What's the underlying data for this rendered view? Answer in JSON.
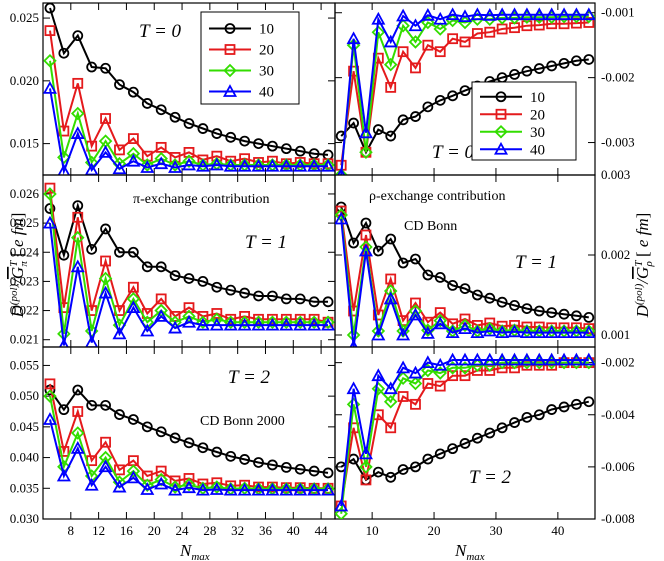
{
  "chart_data": {
    "type": "line",
    "shared": {
      "xlabel": "N_max",
      "ylabel_left": "D^{(pol)}/G̅^T_π [e fm]",
      "ylabel_right": "D^{(pol)}/G̅^T_ρ [e fm]",
      "left_x_ticks": [
        "8",
        "12",
        "16",
        "20",
        "24",
        "28",
        "32",
        "36",
        "40",
        "44"
      ],
      "right_x_ticks": [
        "10",
        "20",
        "30",
        "40"
      ],
      "series_names": [
        "10",
        "20",
        "30",
        "40"
      ],
      "colors": [
        "#000000",
        "#e41a1c",
        "#33dd00",
        "#0000ff"
      ]
    },
    "annotations": {
      "pi_exchange": "π-exchange contribution",
      "rho_exchange": "ρ-exchange contribution",
      "cd_bonn": "CD Bonn",
      "cd_bonn_2000": "CD Bonn 2000"
    },
    "panels": [
      {
        "id": "pi-T0",
        "title": "T = 0",
        "xlim": [
          4,
          46
        ],
        "ylim": [
          0.0125,
          0.0262
        ],
        "yticks": [
          "0.015",
          "0.020",
          "0.025"
        ],
        "x": [
          5,
          7,
          9,
          11,
          13,
          15,
          17,
          19,
          21,
          23,
          25,
          27,
          29,
          31,
          33,
          35,
          37,
          39,
          41,
          43,
          45
        ],
        "series": [
          {
            "name": "10",
            "values": [
              0.0258,
              0.0222,
              0.0236,
              0.0211,
              0.021,
              0.0197,
              0.0191,
              0.0182,
              0.0177,
              0.0171,
              0.0166,
              0.0162,
              0.0158,
              0.0155,
              0.0152,
              0.015,
              0.0148,
              0.0146,
              0.0144,
              0.0142,
              0.0141
            ]
          },
          {
            "name": "20",
            "values": [
              0.024,
              0.016,
              0.0198,
              0.0148,
              0.017,
              0.0145,
              0.0154,
              0.014,
              0.0147,
              0.0139,
              0.0143,
              0.0137,
              0.014,
              0.0136,
              0.0138,
              0.0135,
              0.0136,
              0.0134,
              0.0135,
              0.0134,
              0.0134
            ]
          },
          {
            "name": "30",
            "values": [
              0.0216,
              0.0139,
              0.0174,
              0.0135,
              0.0152,
              0.0134,
              0.0142,
              0.0133,
              0.0138,
              0.0133,
              0.0136,
              0.0133,
              0.0134,
              0.0133,
              0.0133,
              0.0133,
              0.0133,
              0.0133,
              0.0133,
              0.0133,
              0.0133
            ]
          },
          {
            "name": "40",
            "values": [
              0.0194,
              0.0128,
              0.0158,
              0.0129,
              0.0143,
              0.013,
              0.0136,
              0.0131,
              0.0134,
              0.0131,
              0.0133,
              0.0132,
              0.0133,
              0.0132,
              0.0132,
              0.0132,
              0.0132,
              0.0132,
              0.0132,
              0.0132,
              0.0132
            ]
          }
        ],
        "legend": "top-right"
      },
      {
        "id": "rho-T0",
        "title": "T = 0",
        "xlim": [
          4,
          46
        ],
        "ylim": [
          -0.0035,
          -0.00085
        ],
        "yticks": [
          "-0.003",
          "-0.002",
          "-0.001"
        ],
        "x": [
          5,
          7,
          9,
          11,
          13,
          15,
          17,
          19,
          21,
          23,
          25,
          27,
          29,
          31,
          33,
          35,
          37,
          39,
          41,
          43,
          45
        ],
        "series": [
          {
            "name": "10",
            "values": [
              -0.0029,
              -0.0027,
              -0.00315,
              -0.0028,
              -0.0029,
              -0.00265,
              -0.0026,
              -0.00245,
              -0.00235,
              -0.00228,
              -0.0022,
              -0.00213,
              -0.00206,
              -0.002,
              -0.00195,
              -0.0019,
              -0.00186,
              -0.00182,
              -0.00178,
              -0.00174,
              -0.00172
            ]
          },
          {
            "name": "20",
            "values": [
              -0.00335,
              -0.0019,
              -0.00315,
              -0.0017,
              -0.00215,
              -0.0016,
              -0.00185,
              -0.0015,
              -0.0016,
              -0.0014,
              -0.00145,
              -0.00132,
              -0.0013,
              -0.00125,
              -0.00123,
              -0.0012,
              -0.00119,
              -0.00117,
              -0.00117,
              -0.00116,
              -0.00115
            ]
          },
          {
            "name": "30",
            "values": [
              -0.0035,
              -0.0015,
              -0.00315,
              -0.0013,
              -0.0018,
              -0.0012,
              -0.00145,
              -0.00115,
              -0.00125,
              -0.00112,
              -0.00115,
              -0.0011,
              -0.0011,
              -0.00108,
              -0.00108,
              -0.00107,
              -0.00107,
              -0.00107,
              -0.00106,
              -0.00106,
              -0.00106
            ]
          },
          {
            "name": "40",
            "values": [
              -0.0035,
              -0.0014,
              -0.00285,
              -0.0011,
              -0.00145,
              -0.00105,
              -0.0012,
              -0.00104,
              -0.0011,
              -0.00103,
              -0.00106,
              -0.00103,
              -0.00104,
              -0.00103,
              -0.00103,
              -0.00103,
              -0.00103,
              -0.00103,
              -0.00103,
              -0.00103,
              -0.00103
            ]
          }
        ],
        "legend": "center-right"
      },
      {
        "id": "pi-T1",
        "title": "T = 1",
        "xlim": [
          4,
          46
        ],
        "ylim": [
          0.02075,
          0.02665
        ],
        "yticks": [
          "0.021",
          "0.022",
          "0.023",
          "0.024",
          "0.025",
          "0.026"
        ],
        "x": [
          5,
          7,
          9,
          11,
          13,
          15,
          17,
          19,
          21,
          23,
          25,
          27,
          29,
          31,
          33,
          35,
          37,
          39,
          41,
          43,
          45
        ],
        "series": [
          {
            "name": "10",
            "values": [
              0.0255,
              0.0239,
              0.0256,
              0.0241,
              0.0248,
              0.024,
              0.024,
              0.0235,
              0.0235,
              0.0232,
              0.0231,
              0.023,
              0.0228,
              0.0227,
              0.0226,
              0.0225,
              0.0225,
              0.0224,
              0.0224,
              0.0223,
              0.0223
            ]
          },
          {
            "name": "20",
            "values": [
              0.0262,
              0.0221,
              0.0252,
              0.022,
              0.0237,
              0.022,
              0.0228,
              0.0219,
              0.0224,
              0.0218,
              0.0221,
              0.0218,
              0.0219,
              0.0217,
              0.0218,
              0.0217,
              0.0217,
              0.0217,
              0.0217,
              0.0217,
              0.0216
            ]
          },
          {
            "name": "30",
            "values": [
              0.026,
              0.0212,
              0.0245,
              0.0213,
              0.0231,
              0.0215,
              0.0224,
              0.0216,
              0.022,
              0.0216,
              0.0218,
              0.0216,
              0.0217,
              0.0216,
              0.0216,
              0.0216,
              0.0216,
              0.0216,
              0.0216,
              0.0216,
              0.0216
            ]
          },
          {
            "name": "40",
            "values": [
              0.025,
              0.0208,
              0.0235,
              0.0209,
              0.0226,
              0.0212,
              0.0221,
              0.0213,
              0.0218,
              0.0214,
              0.0216,
              0.0215,
              0.0215,
              0.0215,
              0.0215,
              0.0215,
              0.0215,
              0.0215,
              0.0215,
              0.0215,
              0.0215
            ]
          }
        ]
      },
      {
        "id": "rho-T1",
        "title": "T = 1",
        "xlim": [
          4,
          46
        ],
        "ylim": [
          0.00085,
          0.003
        ],
        "yticks": [
          "0.001",
          "0.002",
          "0.003"
        ],
        "x": [
          5,
          7,
          9,
          11,
          13,
          15,
          17,
          19,
          21,
          23,
          25,
          27,
          29,
          31,
          33,
          35,
          37,
          39,
          41,
          43,
          45
        ],
        "series": [
          {
            "name": "10",
            "values": [
              0.0026,
              0.00215,
              0.0024,
              0.00205,
              0.0022,
              0.0019,
              0.00195,
              0.00175,
              0.00172,
              0.00162,
              0.00158,
              0.0015,
              0.00146,
              0.00141,
              0.00137,
              0.00133,
              0.0013,
              0.00128,
              0.00126,
              0.00124,
              0.00122
            ]
          },
          {
            "name": "20",
            "values": [
              0.00255,
              0.0013,
              0.00225,
              0.00125,
              0.0017,
              0.00118,
              0.0014,
              0.00116,
              0.00128,
              0.00114,
              0.0012,
              0.00112,
              0.00115,
              0.00111,
              0.00112,
              0.0011,
              0.0011,
              0.00109,
              0.00109,
              0.00109,
              0.00108
            ]
          },
          {
            "name": "30",
            "values": [
              0.0025,
              0.001,
              0.0021,
              0.00105,
              0.00155,
              0.00105,
              0.0013,
              0.00106,
              0.00118,
              0.00105,
              0.00112,
              0.00105,
              0.00108,
              0.00105,
              0.00106,
              0.00105,
              0.00105,
              0.00105,
              0.00105,
              0.00105,
              0.00105
            ]
          },
          {
            "name": "40",
            "values": [
              0.00245,
              0.00085,
              0.00205,
              0.001,
              0.00145,
              0.001,
              0.00125,
              0.00102,
              0.00114,
              0.00103,
              0.00108,
              0.00103,
              0.00105,
              0.00103,
              0.00104,
              0.00103,
              0.00103,
              0.00103,
              0.00103,
              0.00103,
              0.00103
            ]
          }
        ]
      },
      {
        "id": "pi-T2",
        "title": "T = 2",
        "xlim": [
          4,
          46
        ],
        "ylim": [
          0.03,
          0.058
        ],
        "yticks": [
          "0.030",
          "0.035",
          "0.040",
          "0.045",
          "0.050",
          "0.055"
        ],
        "x": [
          5,
          7,
          9,
          11,
          13,
          15,
          17,
          19,
          21,
          23,
          25,
          27,
          29,
          31,
          33,
          35,
          37,
          39,
          41,
          43,
          45
        ],
        "series": [
          {
            "name": "10",
            "values": [
              0.051,
              0.0478,
              0.051,
              0.0485,
              0.0485,
              0.047,
              0.0462,
              0.045,
              0.0442,
              0.0432,
              0.0424,
              0.0416,
              0.0409,
              0.0402,
              0.0397,
              0.0392,
              0.0388,
              0.0384,
              0.0381,
              0.0378,
              0.0375
            ]
          },
          {
            "name": "20",
            "values": [
              0.052,
              0.041,
              0.0475,
              0.0395,
              0.0425,
              0.038,
              0.0395,
              0.037,
              0.0378,
              0.0362,
              0.0366,
              0.0357,
              0.0359,
              0.0354,
              0.0355,
              0.0352,
              0.0352,
              0.0351,
              0.0351,
              0.035,
              0.035
            ]
          },
          {
            "name": "30",
            "values": [
              0.05,
              0.0385,
              0.044,
              0.037,
              0.04,
              0.036,
              0.0378,
              0.0355,
              0.0364,
              0.0352,
              0.0356,
              0.035,
              0.0352,
              0.0349,
              0.035,
              0.0349,
              0.0349,
              0.0349,
              0.0349,
              0.0349,
              0.0349
            ]
          },
          {
            "name": "40",
            "values": [
              0.0462,
              0.037,
              0.0415,
              0.0355,
              0.0385,
              0.0352,
              0.0367,
              0.0348,
              0.0357,
              0.0347,
              0.0351,
              0.0347,
              0.0348,
              0.0347,
              0.0347,
              0.0347,
              0.0347,
              0.0347,
              0.0347,
              0.0347,
              0.0347
            ]
          }
        ]
      },
      {
        "id": "rho-T2",
        "title": "T = 2",
        "xlim": [
          4,
          46
        ],
        "ylim": [
          -0.008,
          -0.0014
        ],
        "yticks": [
          "-0.008",
          "-0.006",
          "-0.004",
          "-0.002"
        ],
        "x": [
          5,
          7,
          9,
          11,
          13,
          15,
          17,
          19,
          21,
          23,
          25,
          27,
          29,
          31,
          33,
          35,
          37,
          39,
          41,
          43,
          45
        ],
        "series": [
          {
            "name": "10",
            "values": [
              -0.006,
              -0.0057,
              -0.0065,
              -0.0062,
              -0.0064,
              -0.0061,
              -0.006,
              -0.0057,
              -0.0055,
              -0.0053,
              -0.0051,
              -0.0049,
              -0.0047,
              -0.0045,
              -0.0043,
              -0.0041,
              -0.004,
              -0.0038,
              -0.0037,
              -0.0036,
              -0.0035
            ]
          },
          {
            "name": "20",
            "values": [
              -0.0075,
              -0.0045,
              -0.0065,
              -0.004,
              -0.0045,
              -0.0033,
              -0.0036,
              -0.0028,
              -0.0029,
              -0.0025,
              -0.0025,
              -0.0023,
              -0.0023,
              -0.0022,
              -0.0022,
              -0.0021,
              -0.0021,
              -0.0021,
              -0.002,
              -0.002,
              -0.002
            ]
          },
          {
            "name": "30",
            "values": [
              -0.0078,
              -0.0036,
              -0.006,
              -0.003,
              -0.0035,
              -0.0026,
              -0.0028,
              -0.0023,
              -0.0024,
              -0.0022,
              -0.0022,
              -0.0021,
              -0.0021,
              -0.002,
              -0.002,
              -0.002,
              -0.002,
              -0.002,
              -0.002,
              -0.002,
              -0.002
            ]
          },
          {
            "name": "40",
            "values": [
              -0.0075,
              -0.003,
              -0.0055,
              -0.0025,
              -0.003,
              -0.0022,
              -0.0024,
              -0.002,
              -0.0021,
              -0.0019,
              -0.0019,
              -0.0019,
              -0.0019,
              -0.0019,
              -0.0019,
              -0.0019,
              -0.0019,
              -0.0019,
              -0.0019,
              -0.0019,
              -0.0019
            ]
          }
        ]
      }
    ]
  }
}
